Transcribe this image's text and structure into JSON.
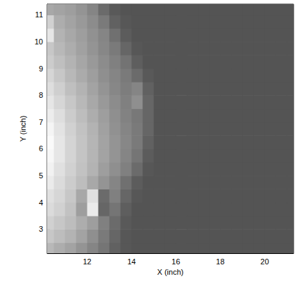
{
  "chart_data": {
    "type": "heatmap",
    "x_label": "X (inch)",
    "y_label": "Y (inch)",
    "xlim": [
      10.2,
      21.3
    ],
    "ylim": [
      2.1,
      11.4
    ],
    "xticks": [
      12,
      14,
      16,
      18,
      20
    ],
    "yticks": [
      3,
      4,
      5,
      6,
      7,
      8,
      9,
      10,
      11
    ],
    "zlim": [
      0,
      1
    ],
    "x": [
      10.25,
      10.75,
      11.25,
      11.75,
      12.25,
      12.75,
      13.25,
      13.75,
      14.25,
      14.75,
      15.25,
      15.75,
      16.25,
      16.75,
      17.25,
      17.75,
      18.25,
      18.75,
      19.25,
      19.75,
      20.25,
      20.75,
      21.25
    ],
    "y": [
      2.25,
      2.75,
      3.25,
      3.75,
      4.25,
      4.75,
      5.25,
      5.75,
      6.25,
      6.75,
      7.25,
      7.75,
      8.25,
      8.75,
      9.25,
      9.75,
      10.25,
      10.75,
      11.25
    ],
    "cells": [
      [
        0.72,
        0.68,
        0.64,
        0.58,
        0.52,
        0.46,
        0.38,
        0.34,
        0.33,
        0.33,
        0.33,
        0.33,
        0.33,
        0.33,
        0.33,
        0.33,
        0.33,
        0.33,
        0.33,
        0.33,
        0.33,
        0.33,
        0.33
      ],
      [
        0.78,
        0.74,
        0.7,
        0.64,
        0.56,
        0.48,
        0.4,
        0.34,
        0.33,
        0.33,
        0.33,
        0.33,
        0.33,
        0.33,
        0.33,
        0.33,
        0.33,
        0.33,
        0.33,
        0.33,
        0.33,
        0.33,
        0.33
      ],
      [
        0.82,
        0.78,
        0.74,
        0.68,
        0.62,
        0.5,
        0.42,
        0.35,
        0.33,
        0.33,
        0.33,
        0.33,
        0.33,
        0.33,
        0.33,
        0.33,
        0.33,
        0.33,
        0.33,
        0.33,
        0.33,
        0.33,
        0.33
      ],
      [
        0.86,
        0.82,
        0.76,
        0.62,
        0.92,
        0.4,
        0.46,
        0.37,
        0.33,
        0.33,
        0.33,
        0.33,
        0.33,
        0.33,
        0.33,
        0.33,
        0.33,
        0.33,
        0.33,
        0.33,
        0.33,
        0.33,
        0.33
      ],
      [
        0.88,
        0.84,
        0.78,
        0.66,
        0.88,
        0.42,
        0.5,
        0.4,
        0.34,
        0.33,
        0.33,
        0.33,
        0.33,
        0.33,
        0.33,
        0.33,
        0.33,
        0.33,
        0.33,
        0.33,
        0.33,
        0.33,
        0.33
      ],
      [
        0.92,
        0.86,
        0.8,
        0.74,
        0.66,
        0.58,
        0.52,
        0.44,
        0.36,
        0.33,
        0.33,
        0.33,
        0.33,
        0.33,
        0.33,
        0.33,
        0.33,
        0.33,
        0.33,
        0.33,
        0.33,
        0.33,
        0.33
      ],
      [
        0.95,
        0.88,
        0.82,
        0.76,
        0.7,
        0.62,
        0.56,
        0.5,
        0.42,
        0.34,
        0.33,
        0.33,
        0.33,
        0.33,
        0.33,
        0.33,
        0.33,
        0.33,
        0.33,
        0.33,
        0.33,
        0.33,
        0.33
      ],
      [
        0.97,
        0.9,
        0.83,
        0.77,
        0.71,
        0.64,
        0.58,
        0.52,
        0.46,
        0.36,
        0.33,
        0.33,
        0.33,
        0.33,
        0.33,
        0.33,
        0.33,
        0.33,
        0.33,
        0.33,
        0.33,
        0.33,
        0.33
      ],
      [
        0.98,
        0.9,
        0.83,
        0.77,
        0.71,
        0.64,
        0.58,
        0.53,
        0.48,
        0.38,
        0.33,
        0.33,
        0.33,
        0.33,
        0.33,
        0.33,
        0.33,
        0.33,
        0.33,
        0.33,
        0.33,
        0.33,
        0.33
      ],
      [
        0.96,
        0.89,
        0.82,
        0.76,
        0.7,
        0.63,
        0.57,
        0.52,
        0.48,
        0.4,
        0.33,
        0.33,
        0.33,
        0.33,
        0.33,
        0.33,
        0.33,
        0.33,
        0.33,
        0.33,
        0.33,
        0.33,
        0.33
      ],
      [
        0.93,
        0.87,
        0.8,
        0.74,
        0.68,
        0.62,
        0.56,
        0.51,
        0.47,
        0.4,
        0.33,
        0.33,
        0.33,
        0.33,
        0.33,
        0.33,
        0.33,
        0.33,
        0.33,
        0.33,
        0.33,
        0.33,
        0.33
      ],
      [
        0.9,
        0.84,
        0.78,
        0.72,
        0.66,
        0.6,
        0.55,
        0.5,
        0.56,
        0.4,
        0.33,
        0.33,
        0.33,
        0.33,
        0.33,
        0.33,
        0.33,
        0.33,
        0.33,
        0.33,
        0.33,
        0.33,
        0.33
      ],
      [
        0.87,
        0.81,
        0.75,
        0.7,
        0.64,
        0.58,
        0.53,
        0.49,
        0.52,
        0.38,
        0.33,
        0.33,
        0.33,
        0.33,
        0.33,
        0.33,
        0.33,
        0.33,
        0.33,
        0.33,
        0.33,
        0.33,
        0.33
      ],
      [
        0.84,
        0.78,
        0.72,
        0.67,
        0.62,
        0.56,
        0.52,
        0.48,
        0.42,
        0.35,
        0.33,
        0.33,
        0.33,
        0.33,
        0.33,
        0.33,
        0.33,
        0.33,
        0.33,
        0.33,
        0.33,
        0.33,
        0.33
      ],
      [
        0.8,
        0.75,
        0.7,
        0.65,
        0.6,
        0.55,
        0.5,
        0.45,
        0.37,
        0.33,
        0.33,
        0.33,
        0.33,
        0.33,
        0.33,
        0.33,
        0.33,
        0.33,
        0.33,
        0.33,
        0.33,
        0.33,
        0.33
      ],
      [
        0.78,
        0.72,
        0.68,
        0.63,
        0.58,
        0.53,
        0.48,
        0.4,
        0.34,
        0.33,
        0.33,
        0.33,
        0.33,
        0.33,
        0.33,
        0.33,
        0.33,
        0.33,
        0.33,
        0.33,
        0.33,
        0.33,
        0.33
      ],
      [
        0.9,
        0.7,
        0.66,
        0.62,
        0.57,
        0.52,
        0.44,
        0.36,
        0.33,
        0.33,
        0.33,
        0.33,
        0.33,
        0.33,
        0.33,
        0.33,
        0.33,
        0.33,
        0.33,
        0.33,
        0.33,
        0.33,
        0.33
      ],
      [
        0.82,
        0.68,
        0.64,
        0.6,
        0.55,
        0.48,
        0.38,
        0.34,
        0.33,
        0.33,
        0.33,
        0.33,
        0.33,
        0.33,
        0.33,
        0.33,
        0.33,
        0.33,
        0.33,
        0.33,
        0.33,
        0.33,
        0.33
      ],
      [
        0.66,
        0.64,
        0.62,
        0.58,
        0.52,
        0.42,
        0.35,
        0.33,
        0.33,
        0.33,
        0.33,
        0.33,
        0.33,
        0.33,
        0.33,
        0.33,
        0.33,
        0.33,
        0.33,
        0.33,
        0.33,
        0.33,
        0.33
      ]
    ]
  }
}
